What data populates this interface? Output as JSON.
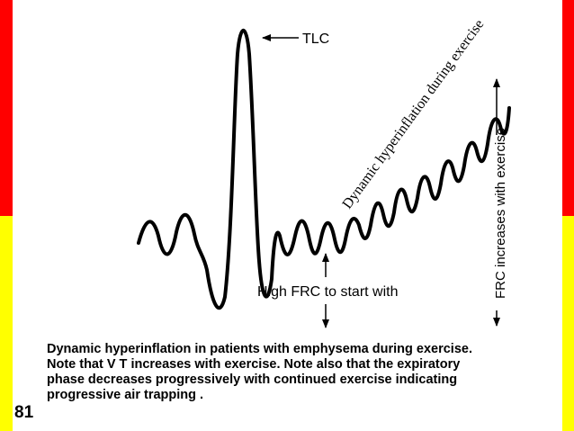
{
  "diagram": {
    "tlc_label": "TLC",
    "dynamic_label": "Dynamic hyperinflation during exercise",
    "frc_increase_label": "FRC increases with exercise",
    "high_frc_label": "High FRC to start with"
  },
  "caption": {
    "lines": [
      "Dynamic hyperinflation in patients with emphysema during exercise.",
      "Note that V T increases with exercise. Note also that the expiratory",
      "phase decreases progressively with continued exercise indicating",
      "progressive air trapping ."
    ]
  },
  "slide_number": "81",
  "colors": {
    "top_band": "#ff0000",
    "bottom_band": "#ffff00",
    "slide": "#ffffff",
    "ink": "#000000"
  }
}
